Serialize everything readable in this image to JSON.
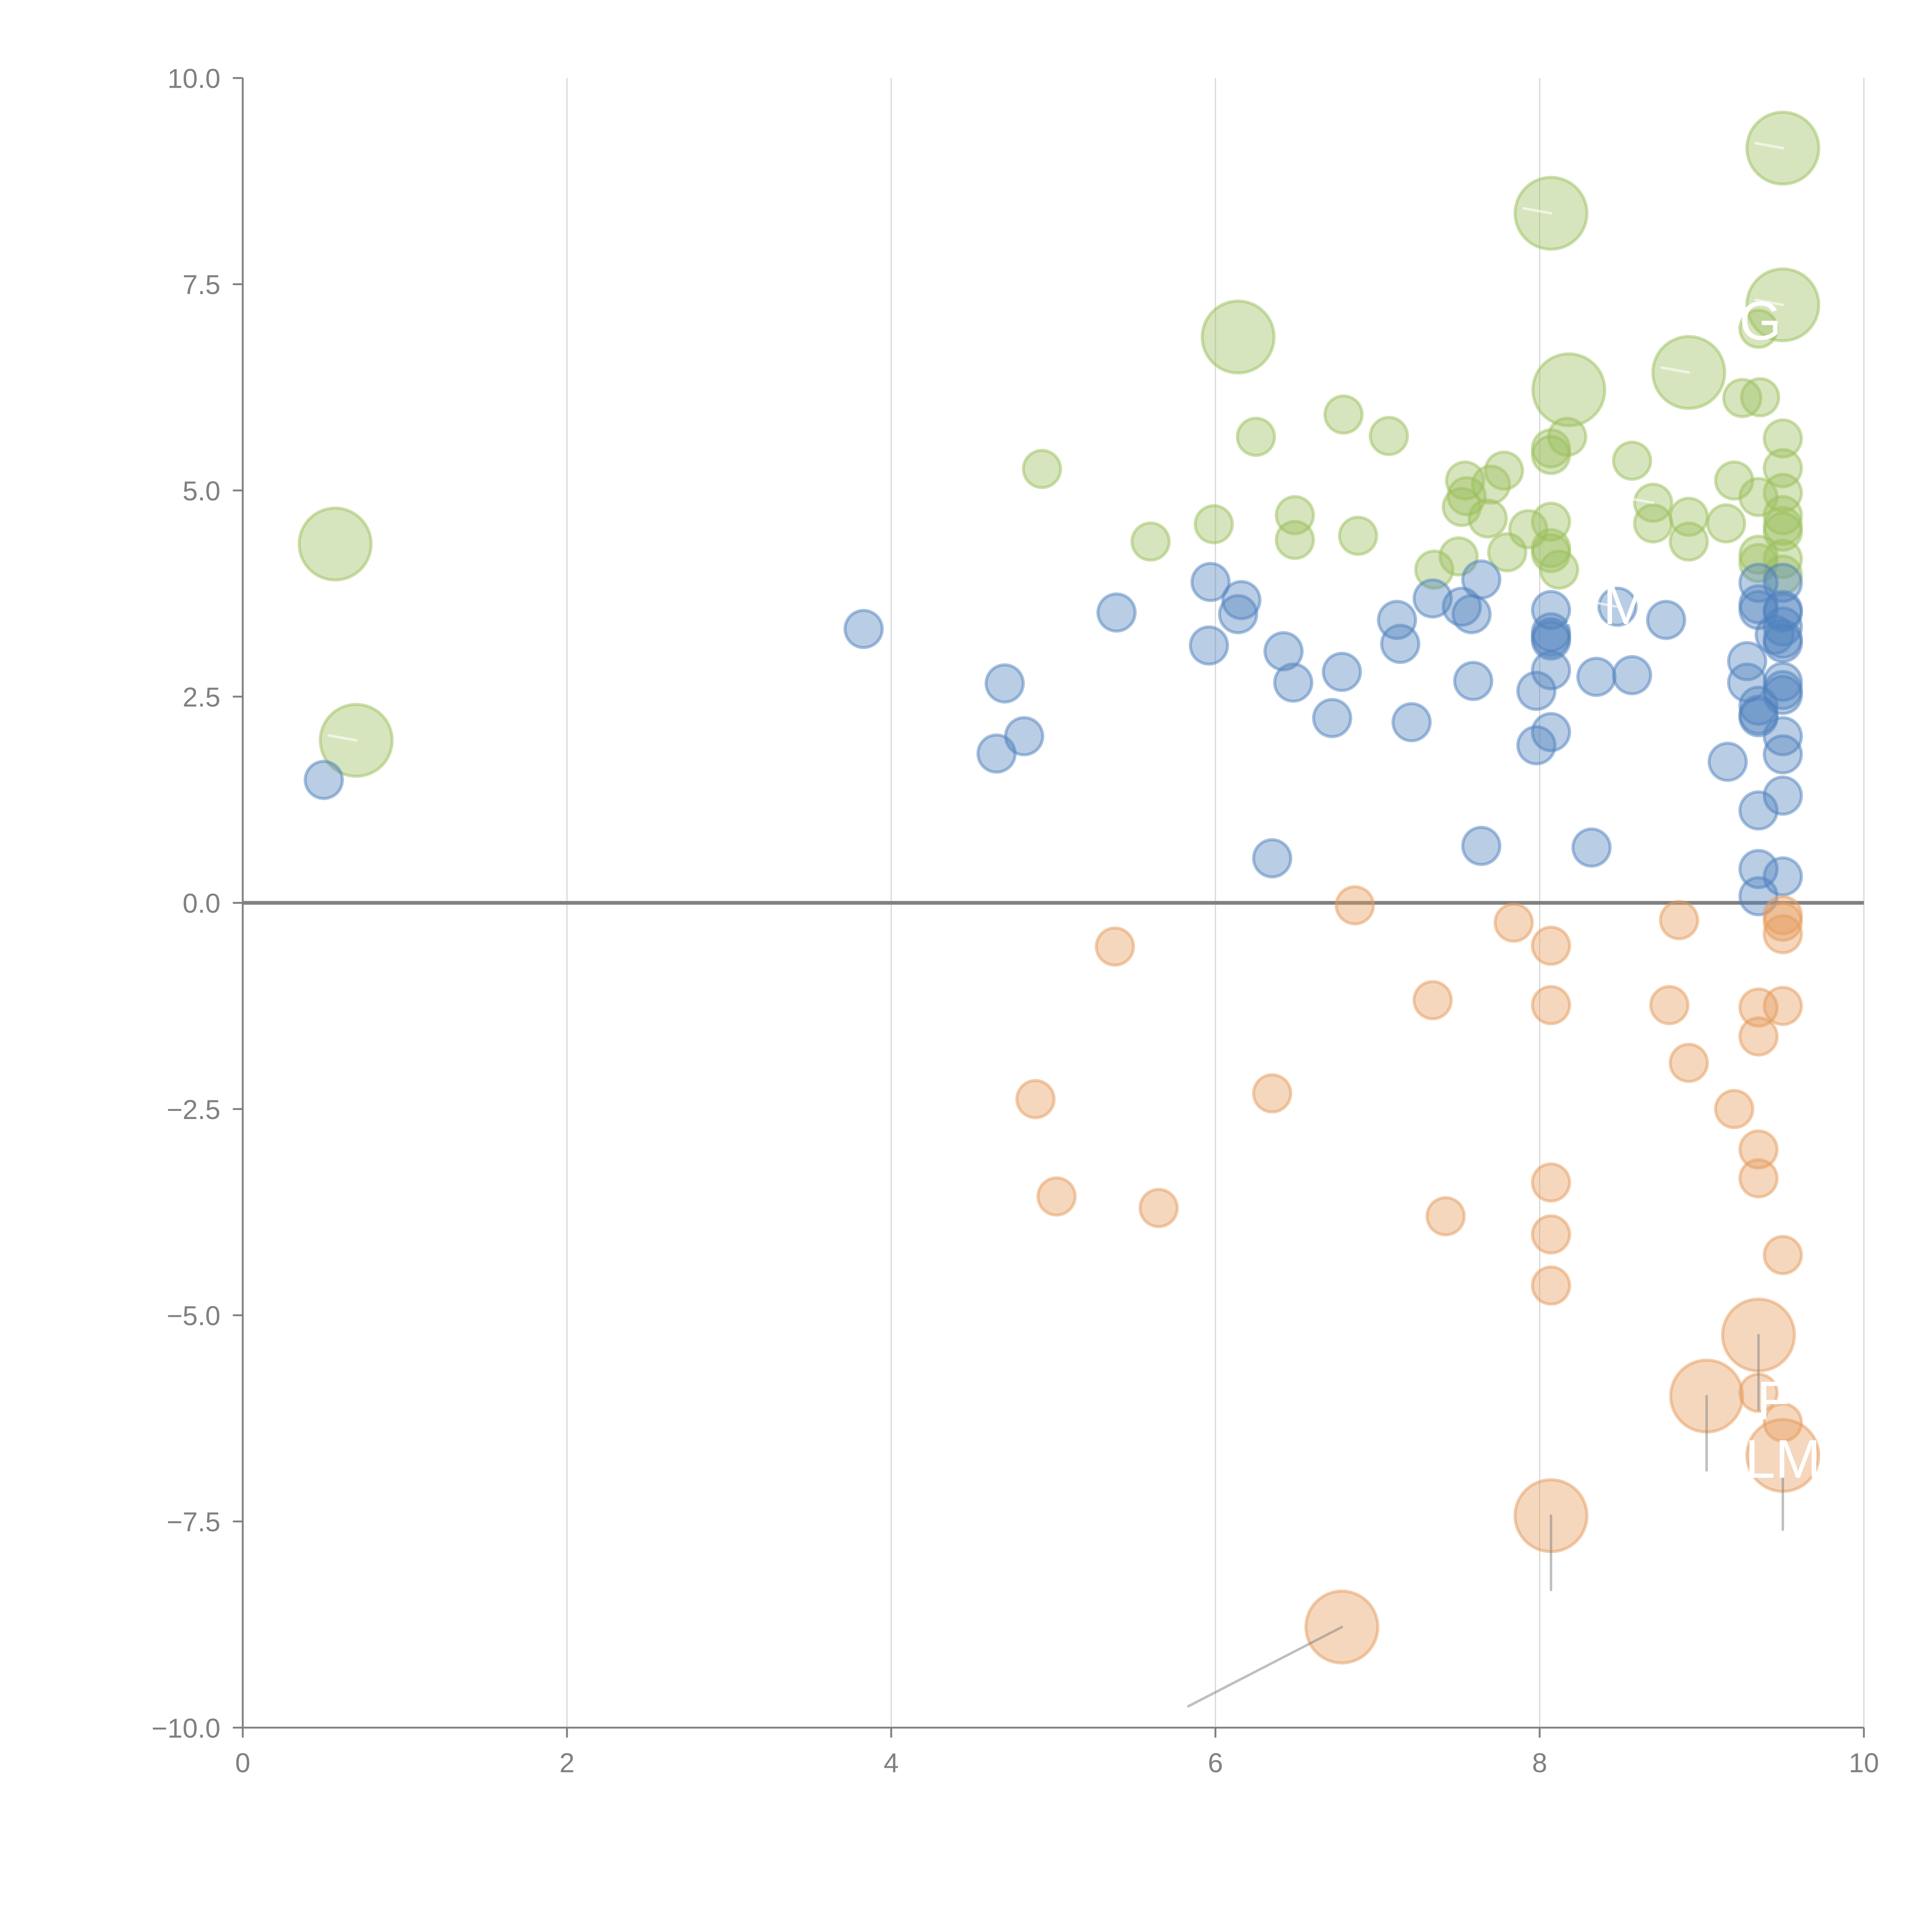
{
  "chart_data": {
    "type": "scatter",
    "subtype": "bubble",
    "title": "",
    "xlabel": "",
    "ylabel": "",
    "xlim": [
      0,
      10
    ],
    "ylim": [
      -10,
      10
    ],
    "x_ticks": [
      "0",
      "2",
      "4",
      "6",
      "8",
      "10"
    ],
    "y_ticks": [
      "10.0",
      "7.5",
      "5.0",
      "2.5",
      "0.0",
      "−2.5",
      "−5.0",
      "−7.5",
      "−10.0"
    ],
    "x_tick_values": [
      0,
      2,
      4,
      6,
      8,
      10
    ],
    "y_tick_values": [
      10,
      7.5,
      5,
      2.5,
      0,
      -2.5,
      -5,
      -7.5,
      -10
    ],
    "grid": "vertical",
    "zero_line": true,
    "legend": "none",
    "series": [
      {
        "name": "green",
        "color": "#9bbf5c",
        "points": [
          {
            "x": 0.57,
            "y": 4.35,
            "size": "large"
          },
          {
            "x": 0.7,
            "y": 1.97,
            "size": "large",
            "leader": "short",
            "label": ""
          },
          {
            "x": 4.93,
            "y": 5.26,
            "size": "small"
          },
          {
            "x": 5.6,
            "y": 4.38,
            "size": "small"
          },
          {
            "x": 5.99,
            "y": 4.59,
            "size": "small"
          },
          {
            "x": 6.14,
            "y": 6.86,
            "size": "large"
          },
          {
            "x": 6.25,
            "y": 5.65,
            "size": "small"
          },
          {
            "x": 6.49,
            "y": 4.7,
            "size": "small"
          },
          {
            "x": 6.49,
            "y": 4.4,
            "size": "small"
          },
          {
            "x": 6.79,
            "y": 5.92,
            "size": "small"
          },
          {
            "x": 6.88,
            "y": 4.45,
            "size": "small"
          },
          {
            "x": 7.07,
            "y": 5.66,
            "size": "small"
          },
          {
            "x": 7.35,
            "y": 4.04,
            "size": "small"
          },
          {
            "x": 7.5,
            "y": 4.2,
            "size": "small"
          },
          {
            "x": 7.52,
            "y": 4.8,
            "size": "small"
          },
          {
            "x": 7.54,
            "y": 5.12,
            "size": "small"
          },
          {
            "x": 7.55,
            "y": 4.93,
            "size": "small"
          },
          {
            "x": 7.68,
            "y": 4.66,
            "size": "small"
          },
          {
            "x": 7.7,
            "y": 5.07,
            "size": "small"
          },
          {
            "x": 7.78,
            "y": 5.24,
            "size": "small"
          },
          {
            "x": 7.8,
            "y": 4.25,
            "size": "small"
          },
          {
            "x": 7.93,
            "y": 4.53,
            "size": "small"
          },
          {
            "x": 8.07,
            "y": 8.36,
            "size": "large",
            "leader": "short",
            "label": ""
          },
          {
            "x": 8.07,
            "y": 5.51,
            "size": "small"
          },
          {
            "x": 8.07,
            "y": 5.43,
            "size": "small"
          },
          {
            "x": 8.07,
            "y": 4.62,
            "size": "small"
          },
          {
            "x": 8.07,
            "y": 4.3,
            "size": "small"
          },
          {
            "x": 8.07,
            "y": 4.24,
            "size": "small"
          },
          {
            "x": 8.12,
            "y": 4.04,
            "size": "small"
          },
          {
            "x": 8.18,
            "y": 6.22,
            "size": "large"
          },
          {
            "x": 8.17,
            "y": 5.65,
            "size": "small"
          },
          {
            "x": 8.57,
            "y": 5.36,
            "size": "small"
          },
          {
            "x": 8.7,
            "y": 4.85,
            "size": "small",
            "leader": "short",
            "label": ""
          },
          {
            "x": 8.7,
            "y": 4.6,
            "size": "small"
          },
          {
            "x": 8.92,
            "y": 6.43,
            "size": "large",
            "leader": "short",
            "label": ""
          },
          {
            "x": 8.92,
            "y": 4.68,
            "size": "small"
          },
          {
            "x": 8.92,
            "y": 4.38,
            "size": "small"
          },
          {
            "x": 9.15,
            "y": 4.6,
            "size": "small"
          },
          {
            "x": 9.2,
            "y": 5.12,
            "size": "small"
          },
          {
            "x": 9.25,
            "y": 6.12,
            "size": "small"
          },
          {
            "x": 9.36,
            "y": 6.13,
            "size": "small"
          },
          {
            "x": 9.35,
            "y": 6.96,
            "size": "small"
          },
          {
            "x": 9.35,
            "y": 4.92,
            "size": "small"
          },
          {
            "x": 9.35,
            "y": 4.22,
            "size": "small"
          },
          {
            "x": 9.35,
            "y": 4.12,
            "size": "small"
          },
          {
            "x": 9.5,
            "y": 9.15,
            "size": "large",
            "leader": "short",
            "label": ""
          },
          {
            "x": 9.5,
            "y": 7.25,
            "size": "large",
            "leader": "short",
            "label": "G"
          },
          {
            "x": 9.5,
            "y": 5.63,
            "size": "small"
          },
          {
            "x": 9.5,
            "y": 5.27,
            "size": "small"
          },
          {
            "x": 9.5,
            "y": 4.97,
            "size": "small"
          },
          {
            "x": 9.5,
            "y": 4.7,
            "size": "small"
          },
          {
            "x": 9.5,
            "y": 4.57,
            "size": "small"
          },
          {
            "x": 9.5,
            "y": 4.5,
            "size": "small"
          },
          {
            "x": 9.5,
            "y": 4.17,
            "size": "small"
          },
          {
            "x": 9.5,
            "y": 3.98,
            "size": "small"
          }
        ]
      },
      {
        "name": "blue",
        "color": "#4f81bd",
        "points": [
          {
            "x": 0.5,
            "y": 1.49,
            "size": "small"
          },
          {
            "x": 3.83,
            "y": 3.32,
            "size": "small"
          },
          {
            "x": 4.65,
            "y": 1.81,
            "size": "small"
          },
          {
            "x": 4.7,
            "y": 2.66,
            "size": "small"
          },
          {
            "x": 4.82,
            "y": 2.02,
            "size": "small"
          },
          {
            "x": 5.39,
            "y": 3.52,
            "size": "small"
          },
          {
            "x": 5.96,
            "y": 3.12,
            "size": "small"
          },
          {
            "x": 5.97,
            "y": 3.89,
            "size": "small"
          },
          {
            "x": 6.14,
            "y": 3.5,
            "size": "small"
          },
          {
            "x": 6.16,
            "y": 3.67,
            "size": "small"
          },
          {
            "x": 6.35,
            "y": 0.54,
            "size": "small"
          },
          {
            "x": 6.42,
            "y": 3.05,
            "size": "small"
          },
          {
            "x": 6.48,
            "y": 2.67,
            "size": "small"
          },
          {
            "x": 6.72,
            "y": 2.24,
            "size": "small"
          },
          {
            "x": 6.78,
            "y": 2.8,
            "size": "small"
          },
          {
            "x": 7.12,
            "y": 3.43,
            "size": "small"
          },
          {
            "x": 7.14,
            "y": 3.14,
            "size": "small"
          },
          {
            "x": 7.21,
            "y": 2.19,
            "size": "small"
          },
          {
            "x": 7.34,
            "y": 3.69,
            "size": "small"
          },
          {
            "x": 7.52,
            "y": 3.59,
            "size": "small"
          },
          {
            "x": 7.58,
            "y": 3.5,
            "size": "small"
          },
          {
            "x": 7.59,
            "y": 2.69,
            "size": "small"
          },
          {
            "x": 7.64,
            "y": 3.92,
            "size": "small"
          },
          {
            "x": 7.64,
            "y": 0.69,
            "size": "small"
          },
          {
            "x": 7.98,
            "y": 1.91,
            "size": "small"
          },
          {
            "x": 7.98,
            "y": 2.57,
            "size": "small"
          },
          {
            "x": 8.07,
            "y": 3.55,
            "size": "small"
          },
          {
            "x": 8.07,
            "y": 3.28,
            "size": "small"
          },
          {
            "x": 8.07,
            "y": 3.22,
            "size": "small"
          },
          {
            "x": 8.07,
            "y": 3.18,
            "size": "small"
          },
          {
            "x": 8.07,
            "y": 2.82,
            "size": "small"
          },
          {
            "x": 8.07,
            "y": 2.07,
            "size": "small"
          },
          {
            "x": 8.32,
            "y": 0.67,
            "size": "small"
          },
          {
            "x": 8.35,
            "y": 2.74,
            "size": "small"
          },
          {
            "x": 8.48,
            "y": 3.59,
            "size": "small",
            "leader": "short",
            "label": "AM"
          },
          {
            "x": 8.57,
            "y": 2.76,
            "size": "small"
          },
          {
            "x": 8.78,
            "y": 3.43,
            "size": "small"
          },
          {
            "x": 9.16,
            "y": 1.71,
            "size": "small"
          },
          {
            "x": 9.28,
            "y": 2.93,
            "size": "small"
          },
          {
            "x": 9.28,
            "y": 2.67,
            "size": "small"
          },
          {
            "x": 9.35,
            "y": 3.88,
            "size": "small"
          },
          {
            "x": 9.35,
            "y": 3.62,
            "size": "small"
          },
          {
            "x": 9.35,
            "y": 3.55,
            "size": "small"
          },
          {
            "x": 9.35,
            "y": 2.39,
            "size": "small"
          },
          {
            "x": 9.35,
            "y": 2.28,
            "size": "small"
          },
          {
            "x": 9.35,
            "y": 2.25,
            "size": "small"
          },
          {
            "x": 9.35,
            "y": 1.12,
            "size": "small"
          },
          {
            "x": 9.35,
            "y": 0.41,
            "size": "small"
          },
          {
            "x": 9.35,
            "y": 0.08,
            "size": "small"
          },
          {
            "x": 9.45,
            "y": 3.25,
            "size": "small"
          },
          {
            "x": 9.5,
            "y": 3.88,
            "size": "small"
          },
          {
            "x": 9.5,
            "y": 3.55,
            "size": "small"
          },
          {
            "x": 9.5,
            "y": 3.52,
            "size": "small"
          },
          {
            "x": 9.5,
            "y": 3.35,
            "size": "small"
          },
          {
            "x": 9.5,
            "y": 3.2,
            "size": "small"
          },
          {
            "x": 9.5,
            "y": 3.15,
            "size": "small"
          },
          {
            "x": 9.5,
            "y": 2.68,
            "size": "small"
          },
          {
            "x": 9.5,
            "y": 2.58,
            "size": "small"
          },
          {
            "x": 9.5,
            "y": 2.52,
            "size": "small"
          },
          {
            "x": 9.5,
            "y": 2.02,
            "size": "small"
          },
          {
            "x": 9.5,
            "y": 1.8,
            "size": "small"
          },
          {
            "x": 9.5,
            "y": 1.3,
            "size": "small"
          },
          {
            "x": 9.5,
            "y": 0.32,
            "size": "small"
          }
        ]
      },
      {
        "name": "orange",
        "color": "#e69c5c",
        "points": [
          {
            "x": 4.89,
            "y": -2.38,
            "size": "small"
          },
          {
            "x": 5.02,
            "y": -3.56,
            "size": "small"
          },
          {
            "x": 5.38,
            "y": -0.53,
            "size": "small"
          },
          {
            "x": 5.65,
            "y": -3.7,
            "size": "small"
          },
          {
            "x": 6.35,
            "y": -2.31,
            "size": "small"
          },
          {
            "x": 6.78,
            "y": -8.78,
            "size": "large",
            "leader": "long",
            "label": ""
          },
          {
            "x": 6.86,
            "y": -0.03,
            "size": "small"
          },
          {
            "x": 7.34,
            "y": -1.18,
            "size": "small"
          },
          {
            "x": 7.42,
            "y": -3.8,
            "size": "small"
          },
          {
            "x": 7.84,
            "y": -0.24,
            "size": "small"
          },
          {
            "x": 8.07,
            "y": -0.52,
            "size": "small"
          },
          {
            "x": 8.07,
            "y": -1.24,
            "size": "small"
          },
          {
            "x": 8.07,
            "y": -3.39,
            "size": "small"
          },
          {
            "x": 8.07,
            "y": -4.02,
            "size": "small"
          },
          {
            "x": 8.07,
            "y": -4.64,
            "size": "small"
          },
          {
            "x": 8.07,
            "y": -7.43,
            "size": "large",
            "leader": "down",
            "label": ""
          },
          {
            "x": 8.8,
            "y": -1.24,
            "size": "small"
          },
          {
            "x": 8.86,
            "y": -0.21,
            "size": "small"
          },
          {
            "x": 8.92,
            "y": -1.94,
            "size": "small"
          },
          {
            "x": 9.03,
            "y": -5.98,
            "size": "large",
            "leader": "down",
            "label": ""
          },
          {
            "x": 9.2,
            "y": -2.5,
            "size": "small"
          },
          {
            "x": 9.35,
            "y": -1.27,
            "size": "small"
          },
          {
            "x": 9.35,
            "y": -1.62,
            "size": "small"
          },
          {
            "x": 9.35,
            "y": -2.99,
            "size": "small"
          },
          {
            "x": 9.35,
            "y": -3.34,
            "size": "small"
          },
          {
            "x": 9.35,
            "y": -5.24,
            "size": "large",
            "leader": "down",
            "label": "F"
          },
          {
            "x": 9.35,
            "y": -5.94,
            "size": "small"
          },
          {
            "x": 9.5,
            "y": -0.15,
            "size": "small"
          },
          {
            "x": 9.5,
            "y": -0.23,
            "size": "small"
          },
          {
            "x": 9.5,
            "y": -0.38,
            "size": "small"
          },
          {
            "x": 9.5,
            "y": -1.25,
            "size": "small"
          },
          {
            "x": 9.5,
            "y": -4.27,
            "size": "small"
          },
          {
            "x": 9.5,
            "y": -6.3,
            "size": "small"
          },
          {
            "x": 9.5,
            "y": -6.7,
            "size": "large",
            "leader": "down",
            "label": "LM"
          }
        ]
      }
    ]
  }
}
